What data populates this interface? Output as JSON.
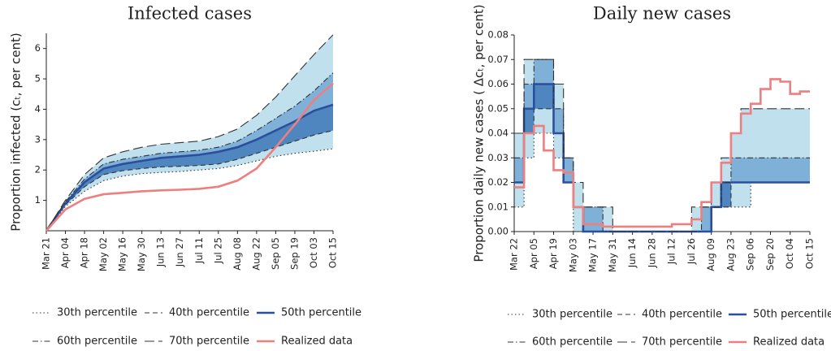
{
  "chart_data": [
    {
      "type": "line",
      "title": "Infected cases",
      "y_label": "Proportion infected (cₜ, per cent)",
      "categories": [
        "Mar 21",
        "Apr 04",
        "Apr 18",
        "May 02",
        "May 16",
        "May 30",
        "Jun 13",
        "Jun 27",
        "Jul 11",
        "Jul 25",
        "Aug 08",
        "Aug 22",
        "Sep 05",
        "Sep 19",
        "Oct 03",
        "Oct 15"
      ],
      "ylim": [
        0,
        6.5
      ],
      "yticks": [
        1,
        2,
        3,
        4,
        5,
        6
      ],
      "grid": false,
      "line_shape": "linear",
      "legend": "bottom",
      "series": [
        {
          "name": "30th percentile",
          "color": "#333333",
          "style": "dotted",
          "values": [
            0,
            0.8,
            1.3,
            1.65,
            1.8,
            1.88,
            1.92,
            1.95,
            2.0,
            2.05,
            2.15,
            2.3,
            2.45,
            2.55,
            2.62,
            2.7
          ]
        },
        {
          "name": "40th percentile",
          "color": "#333333",
          "style": "dashed",
          "values": [
            0,
            0.85,
            1.45,
            1.85,
            1.98,
            2.05,
            2.1,
            2.12,
            2.15,
            2.2,
            2.35,
            2.55,
            2.75,
            2.95,
            3.15,
            3.3
          ]
        },
        {
          "name": "50th percentile",
          "color": "#2b4f9c",
          "style": "solid",
          "values": [
            0,
            0.9,
            1.6,
            2.05,
            2.2,
            2.3,
            2.4,
            2.45,
            2.5,
            2.6,
            2.75,
            3.0,
            3.3,
            3.6,
            3.95,
            4.15
          ]
        },
        {
          "name": "60th percentile",
          "color": "#333333",
          "style": "dashdot",
          "values": [
            0,
            0.95,
            1.7,
            2.2,
            2.35,
            2.45,
            2.55,
            2.6,
            2.65,
            2.75,
            2.95,
            3.3,
            3.7,
            4.1,
            4.6,
            5.2
          ]
        },
        {
          "name": "70th percentile",
          "color": "#333333",
          "style": "longdash",
          "values": [
            0,
            1.0,
            1.85,
            2.4,
            2.6,
            2.75,
            2.85,
            2.9,
            2.95,
            3.1,
            3.35,
            3.8,
            4.4,
            5.1,
            5.8,
            6.45
          ]
        },
        {
          "name": "Realized data",
          "color": "#ee7f7f",
          "style": "solid",
          "values": [
            0,
            0.7,
            1.05,
            1.2,
            1.25,
            1.3,
            1.33,
            1.35,
            1.38,
            1.45,
            1.65,
            2.05,
            2.75,
            3.5,
            4.3,
            4.85
          ]
        }
      ]
    },
    {
      "type": "line",
      "title": "Daily new cases",
      "y_label": "Proportion daily new cases ( Δcₜ, per cent)",
      "categories": [
        "Mar 22",
        null,
        "Apr 05",
        null,
        "Apr 19",
        null,
        "May 03",
        null,
        "May 17",
        null,
        "May 31",
        null,
        "Jun 14",
        null,
        "Jun 28",
        null,
        "Jul 12",
        null,
        "Jul 26",
        null,
        "Aug 09",
        null,
        "Aug 23",
        null,
        "Sep 06",
        null,
        "Sep 20",
        null,
        "Oct 04",
        null,
        "Oct 15"
      ],
      "ylim": [
        0,
        0.08
      ],
      "yticks": [
        {
          "value": 0,
          "label": "0.00"
        },
        {
          "value": 0.01,
          "label": "0.01"
        },
        {
          "value": 0.02,
          "label": "0.02"
        },
        {
          "value": 0.03,
          "label": "0.03"
        },
        {
          "value": 0.04,
          "label": "0.04"
        },
        {
          "value": 0.05,
          "label": "0.05"
        },
        {
          "value": 0.06,
          "label": "0.06"
        },
        {
          "value": 0.07,
          "label": "0.07"
        },
        {
          "value": 0.08,
          "label": "0.08"
        }
      ],
      "grid": false,
      "line_shape": "step",
      "legend": "bottom",
      "series": [
        {
          "name": "30th percentile",
          "color": "#333333",
          "style": "dotted",
          "values": [
            0.01,
            0.03,
            0.04,
            0.04,
            0.03,
            0.02,
            0,
            0,
            0,
            0,
            0,
            0,
            0,
            0,
            0,
            0,
            0,
            0,
            0,
            0,
            0.01,
            0.01,
            0.01,
            0.01,
            0.02,
            0.02,
            0.02,
            0.02,
            0.02,
            0.02,
            0.02
          ]
        },
        {
          "name": "40th percentile",
          "color": "#333333",
          "style": "dashed",
          "values": [
            0.02,
            0.04,
            0.05,
            0.05,
            0.04,
            0.02,
            0.01,
            0,
            0,
            0,
            0,
            0,
            0,
            0,
            0,
            0,
            0,
            0,
            0,
            0,
            0.01,
            0.01,
            0.02,
            0.02,
            0.02,
            0.02,
            0.02,
            0.02,
            0.02,
            0.02,
            0.02
          ]
        },
        {
          "name": "50th percentile",
          "color": "#2b4f9c",
          "style": "solid",
          "values": [
            0.02,
            0.05,
            0.06,
            0.06,
            0.04,
            0.02,
            0.01,
            0,
            0,
            0,
            0,
            0,
            0,
            0,
            0,
            0,
            0,
            0,
            0,
            0,
            0.01,
            0.02,
            0.02,
            0.02,
            0.02,
            0.02,
            0.02,
            0.02,
            0.02,
            0.02,
            0.02
          ]
        },
        {
          "name": "60th percentile",
          "color": "#333333",
          "style": "dashdot",
          "values": [
            0.03,
            0.06,
            0.07,
            0.07,
            0.05,
            0.03,
            0.01,
            0.01,
            0.01,
            0,
            0,
            0,
            0,
            0,
            0,
            0,
            0,
            0,
            0,
            0.01,
            0.01,
            0.02,
            0.03,
            0.03,
            0.03,
            0.03,
            0.03,
            0.03,
            0.03,
            0.03,
            0.03
          ]
        },
        {
          "name": "70th percentile",
          "color": "#333333",
          "style": "longdash",
          "values": [
            0.04,
            0.07,
            0.07,
            0.07,
            0.06,
            0.03,
            0.02,
            0.01,
            0.01,
            0.01,
            0,
            0,
            0,
            0,
            0,
            0,
            0,
            0,
            0.01,
            0.01,
            0.02,
            0.03,
            0.04,
            0.05,
            0.05,
            0.05,
            0.05,
            0.05,
            0.05,
            0.05,
            0.05
          ]
        },
        {
          "name": "Realized data",
          "color": "#ee7f7f",
          "style": "solid",
          "values": [
            0.018,
            0.04,
            0.043,
            0.033,
            0.025,
            0.024,
            0.01,
            0.003,
            0.003,
            0.002,
            0.002,
            0.002,
            0.002,
            0.002,
            0.002,
            0.002,
            0.003,
            0.003,
            0.005,
            0.012,
            0.02,
            0.028,
            0.04,
            0.048,
            0.052,
            0.058,
            0.062,
            0.061,
            0.056,
            0.057,
            0.057
          ]
        }
      ]
    }
  ]
}
